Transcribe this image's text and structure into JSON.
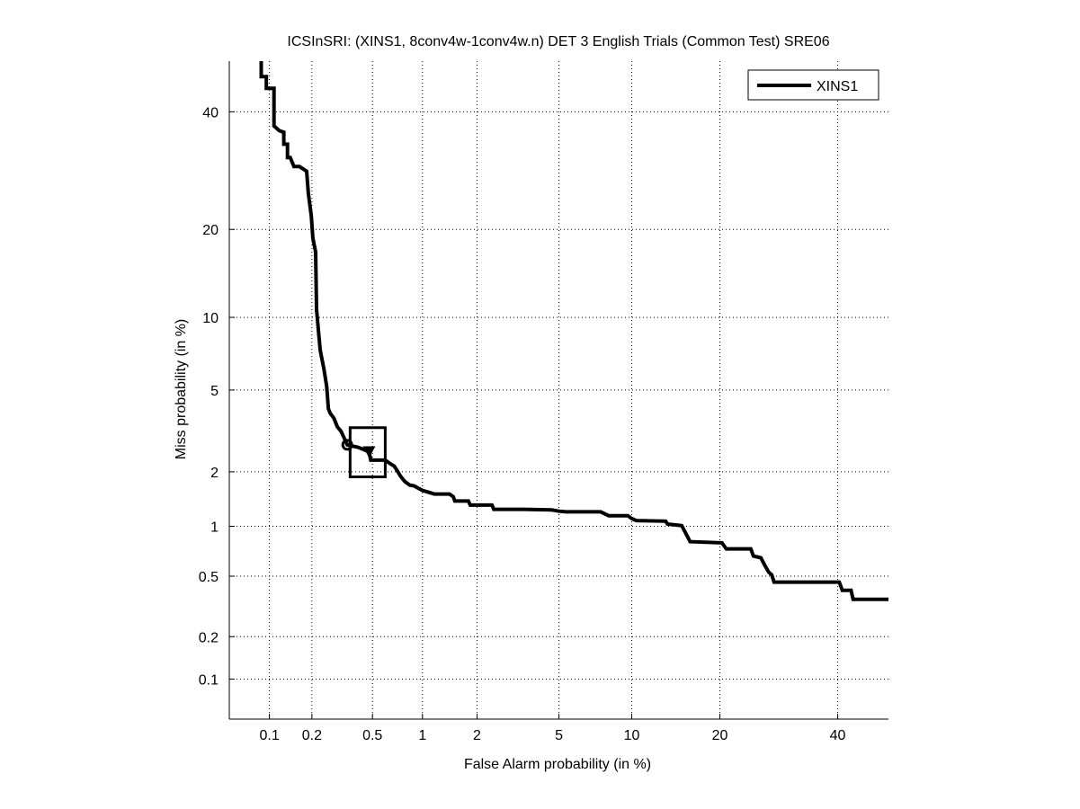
{
  "chart_data": {
    "type": "line",
    "title": "ICSInSRI: (XINS1, 8conv4w-1conv4w.n) DET 3 English Trials (Common Test) SRE06",
    "xlabel": "False Alarm probability (in %)",
    "ylabel": "Miss probability (in %)",
    "scale": "normal-deviate (probit)",
    "xlim": [
      0.05,
      50
    ],
    "ylim": [
      0.05,
      50
    ],
    "grid": true,
    "legend_position": "top-right",
    "x_ticks": [
      0.1,
      0.2,
      0.5,
      1,
      2,
      5,
      10,
      20,
      40
    ],
    "x_tick_labels": [
      "0.1",
      "0.2",
      "0.5",
      "1",
      "2",
      "5",
      "10",
      "20",
      "40"
    ],
    "y_ticks": [
      0.1,
      0.2,
      0.5,
      1,
      2,
      5,
      10,
      20,
      40
    ],
    "y_tick_labels": [
      "0.1",
      "0.2",
      "0.5",
      "1",
      "2",
      "5",
      "10",
      "20",
      "40"
    ],
    "line_color": "#000000",
    "series": [
      {
        "name": "XINS1",
        "x": [
          0.087,
          0.087,
          0.095,
          0.095,
          0.108,
          0.108,
          0.118,
          0.127,
          0.127,
          0.135,
          0.135,
          0.141,
          0.15,
          0.164,
          0.184,
          0.189,
          0.198,
          0.203,
          0.212,
          0.215,
          0.228,
          0.241,
          0.252,
          0.259,
          0.266,
          0.281,
          0.297,
          0.314,
          0.345,
          0.406,
          0.476,
          0.488,
          0.6,
          0.64,
          0.681,
          0.699,
          0.745,
          0.791,
          0.842,
          0.897,
          0.951,
          1.0,
          1.17,
          1.42,
          1.49,
          1.52,
          1.8,
          1.84,
          2.39,
          2.44,
          3.4,
          4.64,
          5.0,
          5.38,
          7.54,
          8.13,
          9.66,
          9.97,
          10.4,
          13.3,
          13.5,
          15.1,
          15.6,
          16.1,
          20.3,
          20.9,
          24.6,
          25.0,
          26.2,
          26.9,
          27.5,
          28.0,
          28.4,
          40.3,
          40.9,
          42.6,
          43.0,
          50
        ],
        "y": [
          50,
          46.9,
          46.9,
          44.6,
          44.6,
          37.3,
          36.4,
          36.1,
          33.9,
          33.9,
          31.5,
          31.5,
          29.9,
          29.9,
          29.1,
          25.4,
          21.9,
          18.8,
          17.0,
          10.7,
          7.4,
          6.22,
          5.19,
          4.1,
          3.91,
          3.72,
          3.37,
          3.21,
          2.75,
          2.67,
          2.54,
          2.3,
          2.3,
          2.21,
          2.14,
          2.07,
          1.89,
          1.77,
          1.7,
          1.68,
          1.63,
          1.59,
          1.52,
          1.52,
          1.47,
          1.39,
          1.39,
          1.32,
          1.32,
          1.25,
          1.25,
          1.24,
          1.22,
          1.21,
          1.21,
          1.15,
          1.15,
          1.11,
          1.08,
          1.07,
          1.03,
          1.01,
          0.906,
          0.813,
          0.8,
          0.736,
          0.736,
          0.666,
          0.65,
          0.58,
          0.53,
          0.51,
          0.459,
          0.459,
          0.407,
          0.407,
          0.356,
          0.356
        ]
      }
    ],
    "markers": {
      "min_dcf_circle": {
        "x": 0.345,
        "y": 2.75
      },
      "actual_dcf_triangle": {
        "x": 0.476,
        "y": 2.54
      },
      "confidence_box": {
        "x": [
          0.36,
          0.6
        ],
        "y": [
          1.88,
          3.34
        ]
      }
    }
  }
}
